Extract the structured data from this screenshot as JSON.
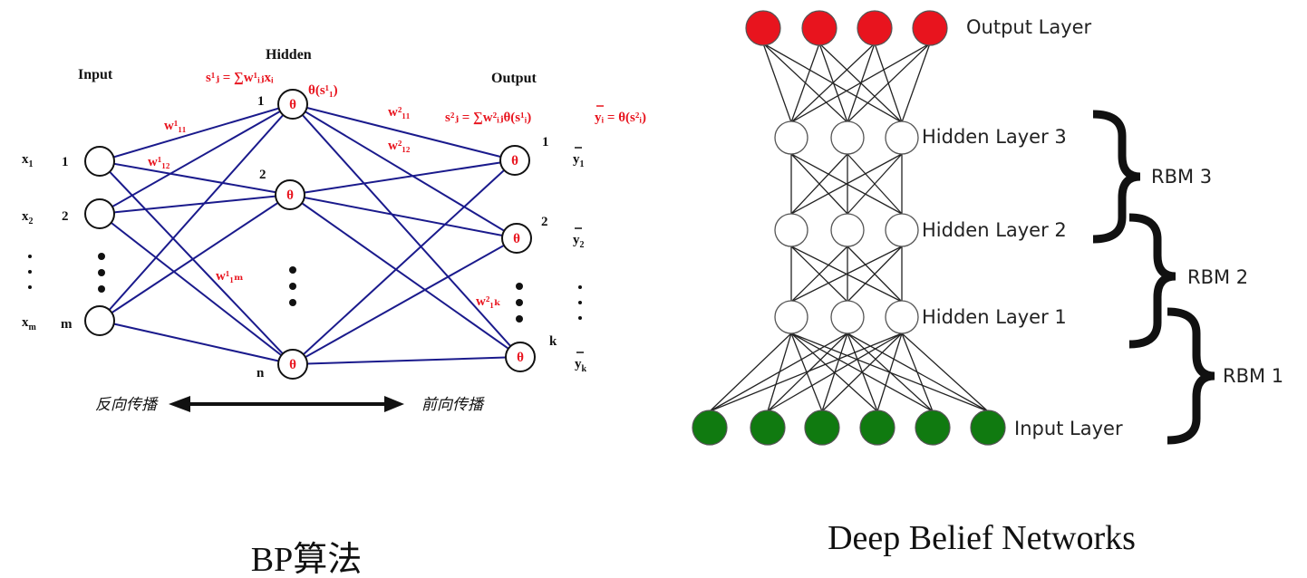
{
  "bp": {
    "caption": "BP算法",
    "input_title": "Input",
    "hidden_title": "Hidden",
    "output_title": "Output",
    "theta": "θ",
    "x_labels": [
      "x",
      "x",
      "x"
    ],
    "x_subs": [
      "1",
      "2",
      "m"
    ],
    "input_indices": [
      "1",
      "2",
      "m"
    ],
    "hidden_indices": [
      "1",
      "2",
      "n"
    ],
    "output_indices": [
      "1",
      "2",
      "k"
    ],
    "y_labels": [
      "y",
      "y",
      "y"
    ],
    "y_subs": [
      "1",
      "2",
      "k"
    ],
    "hidden_sum_formula": "s¹ⱼ = ∑w¹ᵢⱼxᵢ",
    "hidden_activation": "θ(s¹₁)",
    "output_sum_formula": "s²ⱼ = ∑w²ᵢⱼθ(s¹ᵢ)",
    "output_activation_formula": "yᵢ = θ(s²ᵢ)",
    "weights": {
      "w1_11": "w¹₁₁",
      "w1_12": "w¹₁₂",
      "w1_1m": "w¹₁ₘ",
      "w2_11": "w²₁₁",
      "w2_12": "w²₁₂",
      "w2_1k": "w²₁ₖ"
    },
    "backward_label": "反向传播",
    "forward_label": "前向传播",
    "colors": {
      "lines": "#1a1a8c",
      "red": "#e8141e",
      "text": "#111111"
    }
  },
  "dbn": {
    "caption": "Deep Belief Networks",
    "output_layer_label": "Output Layer",
    "hidden_layer_3_label": "Hidden Layer 3",
    "hidden_layer_2_label": "Hidden Layer 2",
    "hidden_layer_1_label": "Hidden Layer 1",
    "input_layer_label": "Input Layer",
    "rbm_labels": [
      "RBM 3",
      "RBM 2",
      "RBM 1"
    ],
    "colors": {
      "output_fill": "#e8141e",
      "input_fill": "#107a10",
      "hidden_fill": "#ffffff",
      "lines": "#222222"
    }
  }
}
